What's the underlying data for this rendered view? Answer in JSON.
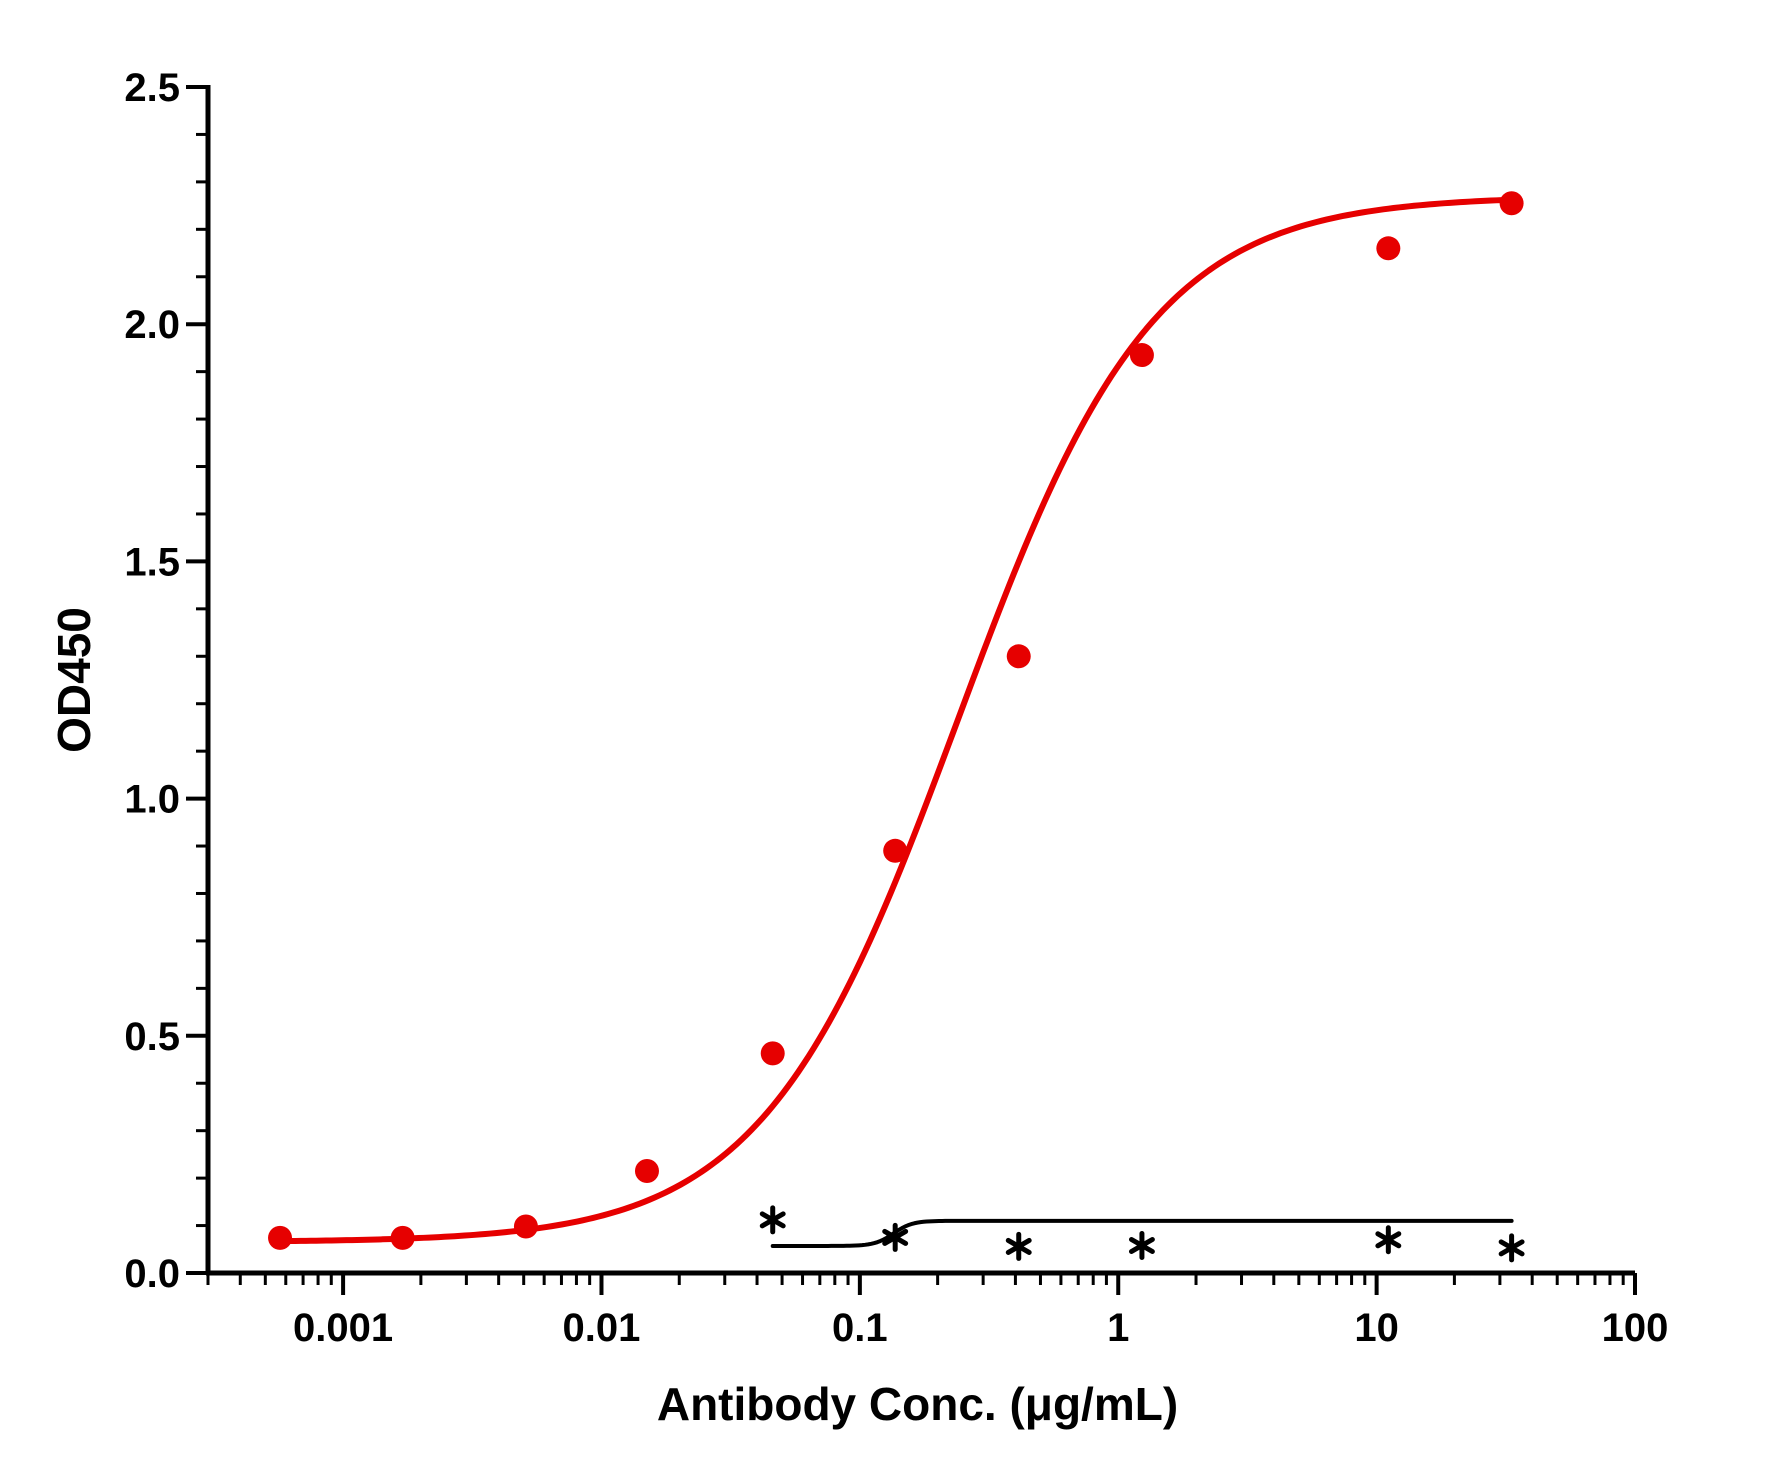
{
  "chart_data": {
    "type": "scatter",
    "xlabel": "Antibody Conc. (μg/mL)",
    "ylabel": "OD450",
    "x_scale": "log",
    "xlim": [
      0.0003,
      100
    ],
    "ylim": [
      0,
      2.5
    ],
    "x_ticks": [
      0.001,
      0.01,
      0.1,
      1,
      10,
      100
    ],
    "x_tick_labels": [
      "0.001",
      "0.01",
      "0.1",
      "1",
      "10",
      "100"
    ],
    "y_ticks": [
      0,
      0.5,
      1,
      1.5,
      2,
      2.5
    ],
    "y_tick_labels": [
      "0.0",
      "0.5",
      "1.0",
      "1.5",
      "2.0",
      "2.5"
    ],
    "grid": false,
    "legend": "none",
    "series": [
      {
        "color": "#e60000",
        "marker": "circle",
        "fit": "4PL",
        "points": [
          {
            "x": 0.00057,
            "y": 0.074
          },
          {
            "x": 0.0017,
            "y": 0.074
          },
          {
            "x": 0.0051,
            "y": 0.098
          },
          {
            "x": 0.015,
            "y": 0.215
          },
          {
            "x": 0.046,
            "y": 0.463
          },
          {
            "x": 0.137,
            "y": 0.89
          },
          {
            "x": 0.412,
            "y": 1.3
          },
          {
            "x": 1.235,
            "y": 1.935
          },
          {
            "x": 11.1,
            "y": 2.16
          },
          {
            "x": 33.3,
            "y": 2.255
          }
        ],
        "fit_params": {
          "bottom": 0.065,
          "top": 2.27,
          "ec50": 0.24,
          "hill": 1.15
        }
      },
      {
        "color": "#000000",
        "marker": "asterisk",
        "fit": "step",
        "points": [
          {
            "x": 0.046,
            "y": 0.112
          },
          {
            "x": 0.137,
            "y": 0.075
          },
          {
            "x": 0.412,
            "y": 0.056
          },
          {
            "x": 1.235,
            "y": 0.058
          },
          {
            "x": 11.1,
            "y": 0.07
          },
          {
            "x": 33.3,
            "y": 0.053
          }
        ],
        "fit_params": {
          "bottom": 0.057,
          "top": 0.11,
          "ec50": 0.135,
          "hill": 12
        }
      }
    ]
  }
}
